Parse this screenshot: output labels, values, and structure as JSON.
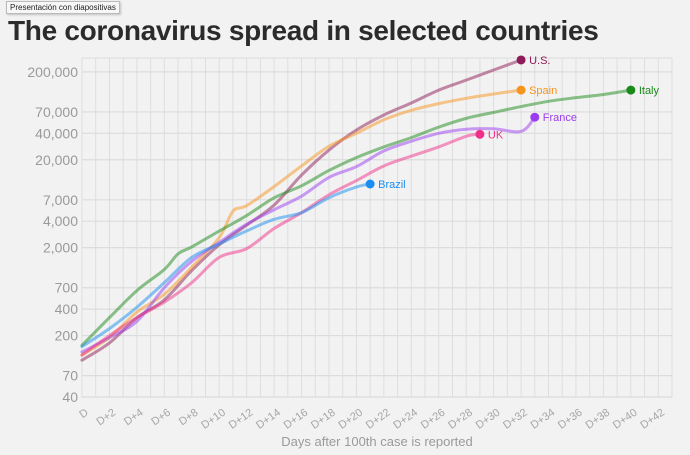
{
  "tooltip": "Presentación con diapositivas",
  "chart_data": {
    "type": "line",
    "title": "The coronavirus spread in selected countries",
    "xlabel": "Days after 100th case is reported",
    "ylabel": "",
    "yscale": "log",
    "ylim": [
      40,
      280000
    ],
    "xlim": [
      0,
      43
    ],
    "grid": true,
    "yticks": [
      200000,
      70000,
      40000,
      20000,
      7000,
      4000,
      2000,
      700,
      400,
      200,
      70,
      40
    ],
    "ytick_labels": [
      "200,000",
      "70,000",
      "40,000",
      "20,000",
      "7,000",
      "4,000",
      "2,000",
      "700",
      "400",
      "200",
      "70",
      "40"
    ],
    "xticks": [
      0,
      2,
      4,
      6,
      8,
      10,
      12,
      14,
      16,
      18,
      20,
      22,
      24,
      26,
      28,
      30,
      32,
      34,
      36,
      38,
      40,
      42
    ],
    "xtick_labels": [
      "D",
      "D+2",
      "D+4",
      "D+6",
      "D+8",
      "D+10",
      "D+12",
      "D+14",
      "D+16",
      "D+18",
      "D+20",
      "D+22",
      "D+24",
      "D+26",
      "D+28",
      "D+30",
      "D+32",
      "D+34",
      "D+36",
      "D+38",
      "D+40",
      "D+42"
    ],
    "series": [
      {
        "name": "U.S.",
        "color": "#8e1b57",
        "points": [
          [
            0,
            105
          ],
          [
            2,
            165
          ],
          [
            4,
            320
          ],
          [
            6,
            510
          ],
          [
            8,
            1100
          ],
          [
            10,
            2150
          ],
          [
            12,
            3600
          ],
          [
            14,
            6100
          ],
          [
            16,
            13400
          ],
          [
            18,
            25800
          ],
          [
            20,
            43600
          ],
          [
            22,
            64600
          ],
          [
            24,
            88500
          ],
          [
            26,
            124000
          ],
          [
            28,
            161000
          ],
          [
            30,
            210000
          ],
          [
            32,
            273000
          ]
        ]
      },
      {
        "name": "Spain",
        "color": "#f7941d",
        "points": [
          [
            0,
            120
          ],
          [
            2,
            190
          ],
          [
            4,
            370
          ],
          [
            6,
            590
          ],
          [
            8,
            1200
          ],
          [
            10,
            2600
          ],
          [
            11,
            5200
          ],
          [
            12,
            6000
          ],
          [
            14,
            9900
          ],
          [
            16,
            17000
          ],
          [
            18,
            28500
          ],
          [
            20,
            40000
          ],
          [
            22,
            57000
          ],
          [
            24,
            73000
          ],
          [
            26,
            87000
          ],
          [
            28,
            100000
          ],
          [
            30,
            112000
          ],
          [
            32,
            124000
          ]
        ]
      },
      {
        "name": "Italy",
        "color": "#1a8a1a",
        "points": [
          [
            0,
            155
          ],
          [
            2,
            320
          ],
          [
            4,
            650
          ],
          [
            6,
            1130
          ],
          [
            7,
            1700
          ],
          [
            8,
            2040
          ],
          [
            10,
            3090
          ],
          [
            12,
            4640
          ],
          [
            14,
            7380
          ],
          [
            16,
            10100
          ],
          [
            18,
            15110
          ],
          [
            20,
            21160
          ],
          [
            22,
            27980
          ],
          [
            24,
            35710
          ],
          [
            26,
            47020
          ],
          [
            28,
            59140
          ],
          [
            30,
            69180
          ],
          [
            32,
            80590
          ],
          [
            34,
            92470
          ],
          [
            36,
            101740
          ],
          [
            38,
            110570
          ],
          [
            40,
            124000
          ]
        ]
      },
      {
        "name": "France",
        "color": "#9b3df0",
        "points": [
          [
            0,
            130
          ],
          [
            2,
            190
          ],
          [
            4,
            290
          ],
          [
            6,
            700
          ],
          [
            8,
            1400
          ],
          [
            10,
            2300
          ],
          [
            12,
            3700
          ],
          [
            14,
            5400
          ],
          [
            16,
            7700
          ],
          [
            18,
            12600
          ],
          [
            20,
            16700
          ],
          [
            22,
            25200
          ],
          [
            24,
            32500
          ],
          [
            26,
            40000
          ],
          [
            28,
            44500
          ],
          [
            30,
            45000
          ],
          [
            32,
            42000
          ],
          [
            33,
            61000
          ]
        ]
      },
      {
        "name": "UK",
        "color": "#f0308a",
        "points": [
          [
            0,
            120
          ],
          [
            2,
            200
          ],
          [
            4,
            320
          ],
          [
            6,
            480
          ],
          [
            8,
            800
          ],
          [
            10,
            1550
          ],
          [
            12,
            1950
          ],
          [
            14,
            3300
          ],
          [
            16,
            5000
          ],
          [
            18,
            8000
          ],
          [
            20,
            11600
          ],
          [
            22,
            17000
          ],
          [
            24,
            22000
          ],
          [
            26,
            28000
          ],
          [
            28,
            37000
          ],
          [
            29,
            39000
          ]
        ]
      },
      {
        "name": "Brazil",
        "color": "#1a8ef0",
        "points": [
          [
            0,
            150
          ],
          [
            2,
            240
          ],
          [
            4,
            420
          ],
          [
            6,
            800
          ],
          [
            8,
            1550
          ],
          [
            10,
            2200
          ],
          [
            12,
            3100
          ],
          [
            14,
            4200
          ],
          [
            16,
            5000
          ],
          [
            18,
            7400
          ],
          [
            20,
            9800
          ],
          [
            21,
            10600
          ]
        ]
      }
    ]
  }
}
